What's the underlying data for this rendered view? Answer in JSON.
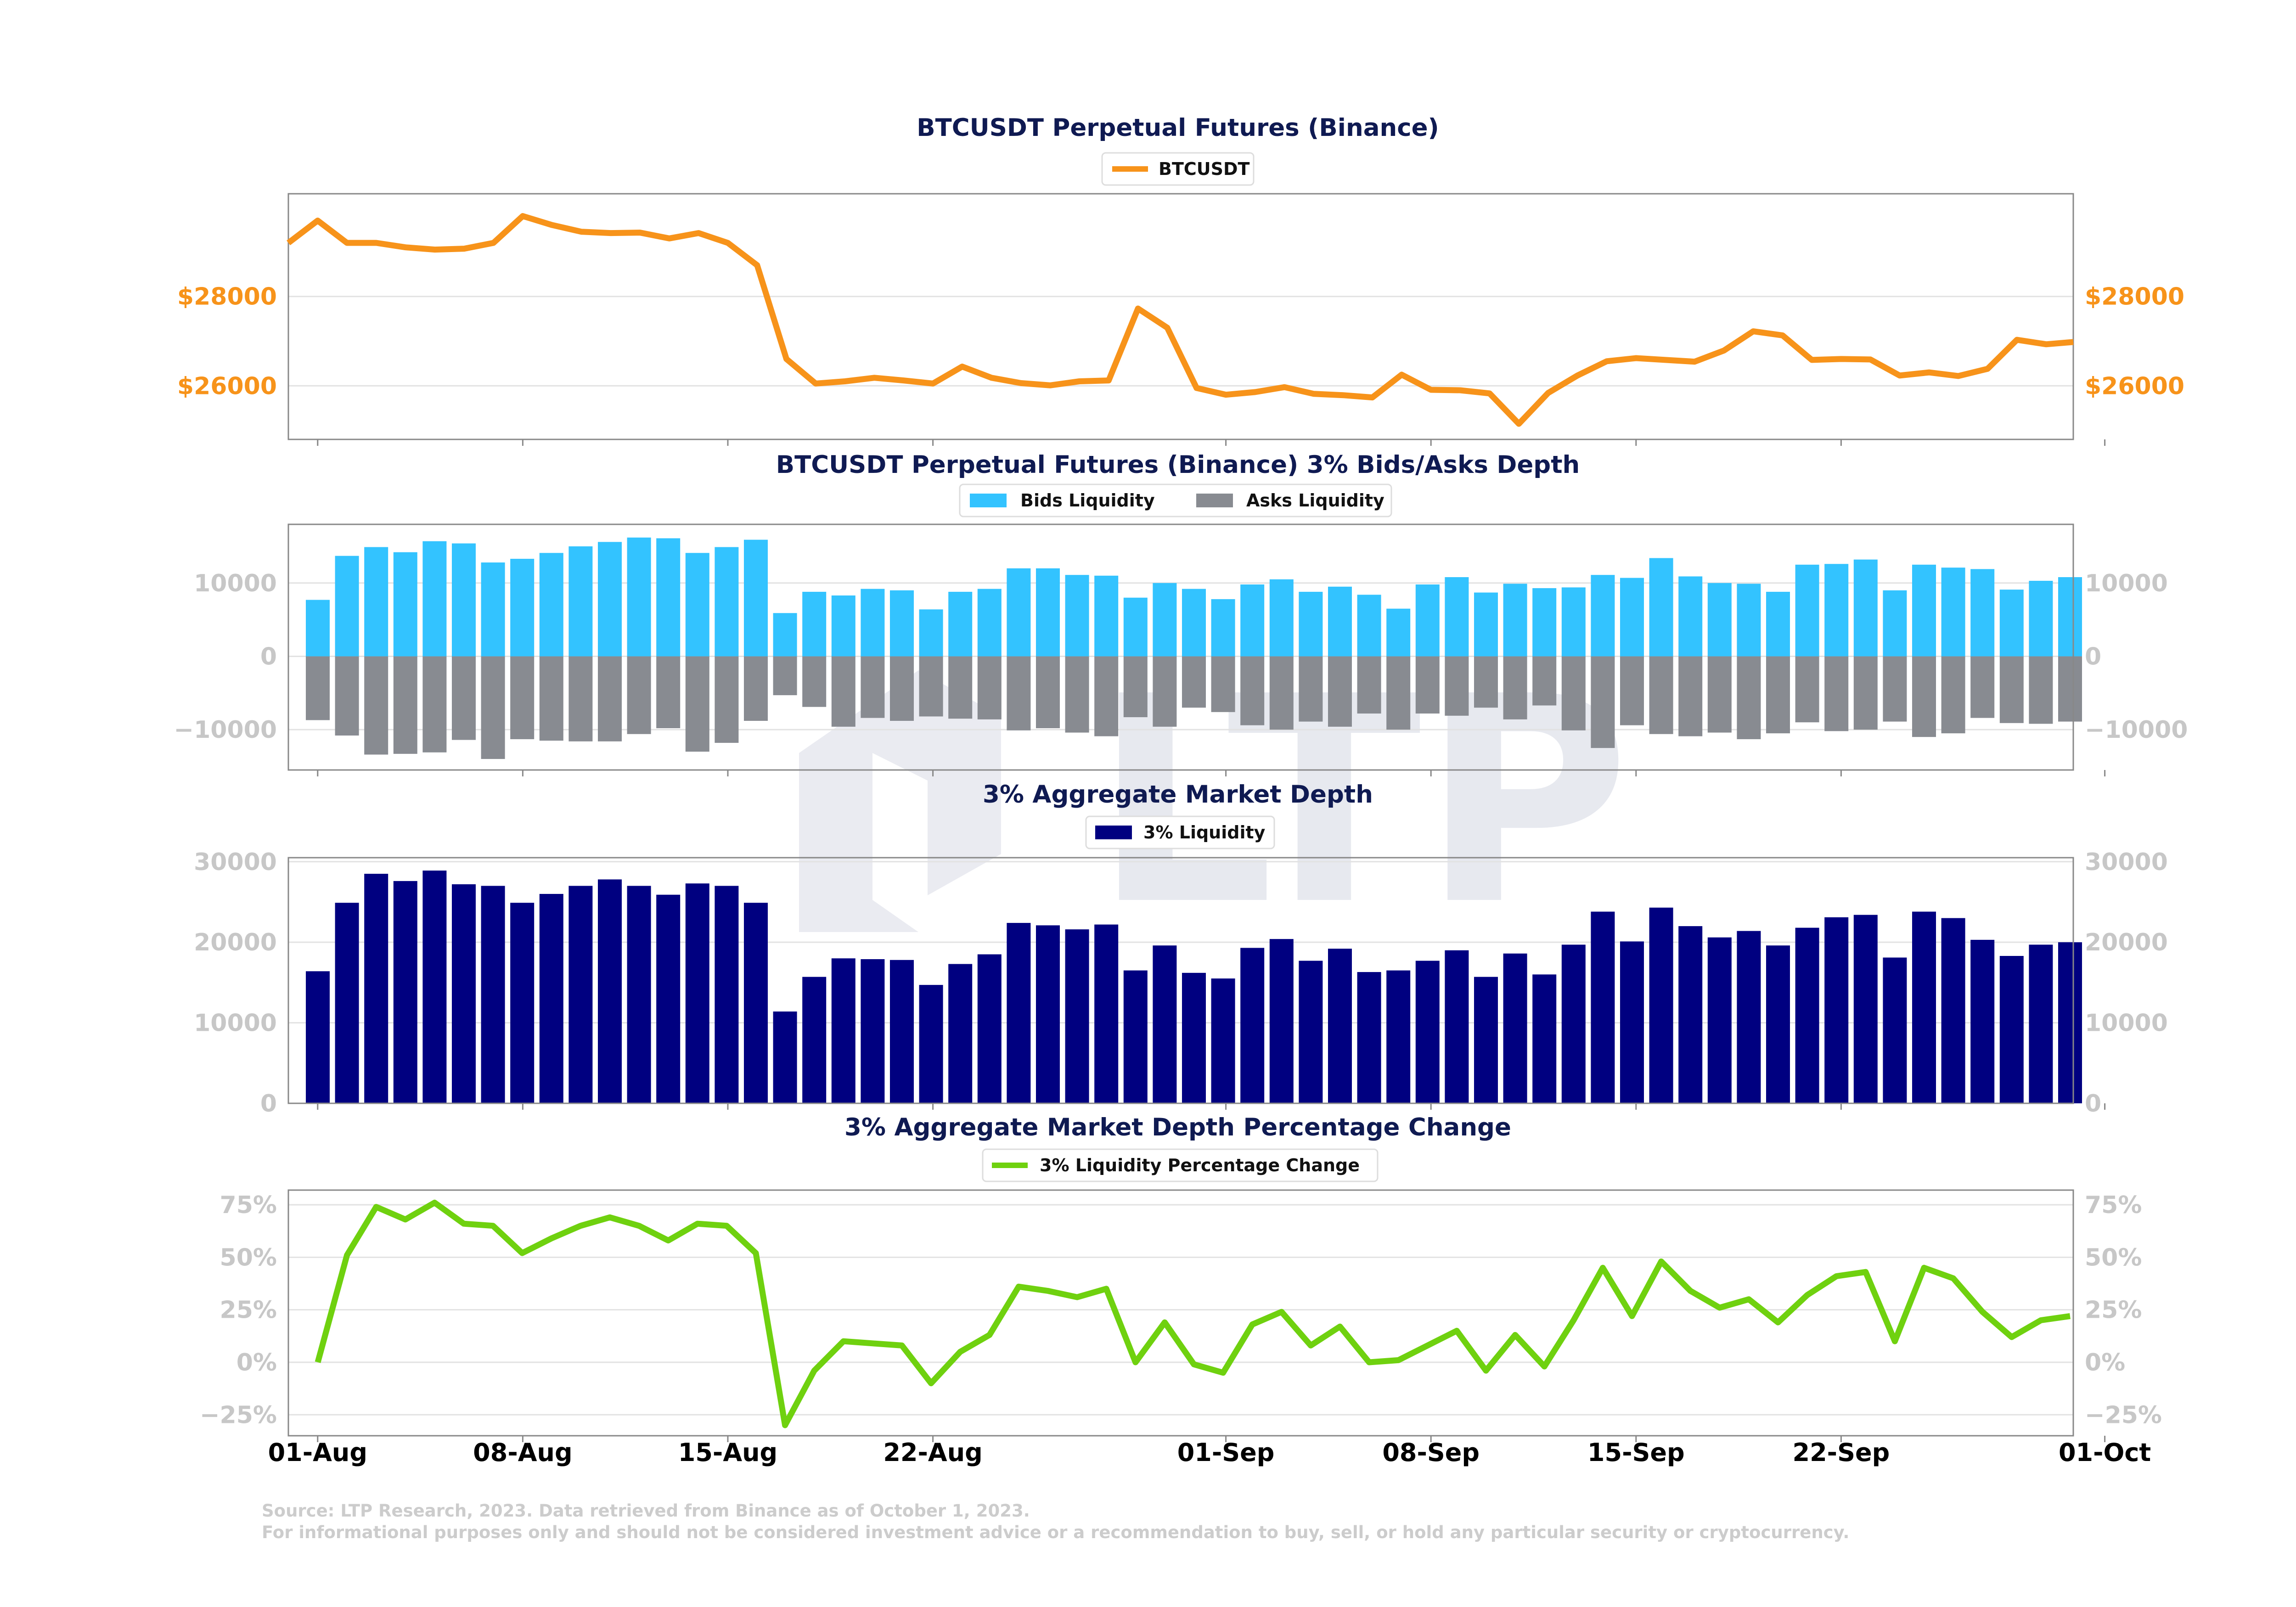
{
  "colors": {
    "price": "#f7931a",
    "bids": "#33c3ff",
    "asks": "#888b91",
    "liquidity": "#000080",
    "pct": "#6fd10f",
    "title": "#0f1a52",
    "tick_gray": "#c7c7c7",
    "tick_price": "#f7931a"
  },
  "watermark": {
    "text": "LTP"
  },
  "source": {
    "line1": "Source: LTP Research, 2023. Data retrieved from Binance as of October 1, 2023.",
    "line2": "For informational purposes only and should not be considered investment advice or a recommendation to buy, sell, or hold any particular security or cryptocurrency."
  },
  "x_axis": {
    "tick_labels": [
      "01-Aug",
      "08-Aug",
      "15-Aug",
      "22-Aug",
      "01-Sep",
      "08-Sep",
      "15-Sep",
      "22-Sep",
      "01-Oct"
    ]
  },
  "chart_data": [
    {
      "type": "line",
      "title": "BTCUSDT Perpetual Futures (Binance)",
      "series": [
        {
          "name": "BTCUSDT",
          "x": [
            "2023-07-31",
            "2023-08-01",
            "2023-08-02",
            "2023-08-03",
            "2023-08-04",
            "2023-08-05",
            "2023-08-06",
            "2023-08-07",
            "2023-08-08",
            "2023-08-09",
            "2023-08-10",
            "2023-08-11",
            "2023-08-12",
            "2023-08-13",
            "2023-08-14",
            "2023-08-15",
            "2023-08-16",
            "2023-08-17",
            "2023-08-18",
            "2023-08-19",
            "2023-08-20",
            "2023-08-21",
            "2023-08-22",
            "2023-08-23",
            "2023-08-24",
            "2023-08-25",
            "2023-08-26",
            "2023-08-27",
            "2023-08-28",
            "2023-08-29",
            "2023-08-30",
            "2023-08-31",
            "2023-09-01",
            "2023-09-02",
            "2023-09-03",
            "2023-09-04",
            "2023-09-05",
            "2023-09-06",
            "2023-09-07",
            "2023-09-08",
            "2023-09-09",
            "2023-09-10",
            "2023-09-11",
            "2023-09-12",
            "2023-09-13",
            "2023-09-14",
            "2023-09-15",
            "2023-09-16",
            "2023-09-17",
            "2023-09-18",
            "2023-09-19",
            "2023-09-20",
            "2023-09-21",
            "2023-09-22",
            "2023-09-23",
            "2023-09-24",
            "2023-09-25",
            "2023-09-26",
            "2023-09-27",
            "2023-09-28",
            "2023-09-29",
            "2023-09-30",
            "2023-10-01"
          ],
          "values": [
            29200,
            29700,
            29200,
            29200,
            29100,
            29050,
            29070,
            29200,
            29800,
            29600,
            29450,
            29420,
            29430,
            29300,
            29420,
            29200,
            28700,
            26600,
            26050,
            26100,
            26180,
            26120,
            26050,
            26430,
            26180,
            26060,
            26010,
            26100,
            26120,
            27730,
            27300,
            25950,
            25800,
            25860,
            25970,
            25820,
            25790,
            25740,
            26250,
            25910,
            25900,
            25830,
            25150,
            25840,
            26230,
            26550,
            26620,
            26580,
            26540,
            26790,
            27220,
            27130,
            26580,
            26600,
            26590,
            26230,
            26300,
            26220,
            26380,
            27030,
            26930,
            26980,
            26980
          ]
        }
      ],
      "ylim": [
        24800,
        30300
      ],
      "yticks": [
        "$26000",
        "$28000"
      ]
    },
    {
      "type": "bar",
      "title": "BTCUSDT Perpetual Futures (Binance) 3% Bids/Asks Depth",
      "series": [
        {
          "name": "Bids Liquidity",
          "values": [
            7700,
            13700,
            14900,
            14200,
            15700,
            15400,
            12800,
            13300,
            14100,
            15000,
            15600,
            16200,
            16100,
            14100,
            14900,
            15900,
            5900,
            8800,
            8300,
            9200,
            9000,
            6400,
            8800,
            9200,
            12000,
            12000,
            11100,
            11000,
            8000,
            10000,
            9200,
            7800,
            9800,
            10500,
            8800,
            9500,
            8400,
            6500,
            9800,
            10800,
            8700,
            9900,
            9300,
            9400,
            11100,
            10700,
            13400,
            10900,
            10000,
            9900,
            8800,
            12500,
            12600,
            13200,
            9000,
            12500,
            12100,
            11900,
            9100,
            10300,
            10800
          ]
        },
        {
          "name": "Asks Liquidity",
          "values": [
            -8700,
            -10800,
            -13400,
            -13300,
            -13100,
            -11400,
            -14000,
            -11300,
            -11500,
            -11600,
            -11600,
            -10600,
            -9800,
            -13000,
            -11800,
            -8800,
            -5300,
            -6900,
            -9600,
            -8400,
            -8800,
            -8200,
            -8500,
            -8600,
            -10100,
            -9800,
            -10400,
            -10900,
            -8300,
            -9600,
            -7000,
            -7600,
            -9400,
            -10000,
            -8900,
            -9600,
            -7800,
            -10000,
            -7800,
            -8100,
            -7000,
            -8600,
            -6700,
            -10100,
            -12500,
            -9400,
            -10600,
            -10900,
            -10400,
            -11300,
            -10500,
            -9000,
            -10200,
            -10000,
            -8900,
            -11000,
            -10500,
            -8400,
            -9100,
            -9200,
            -8900
          ]
        }
      ],
      "ylim": [
        -15500,
        18000
      ],
      "yticks": [
        "−10000",
        "0",
        "10000"
      ]
    },
    {
      "type": "bar",
      "title": "3% Aggregate Market Depth",
      "series": [
        {
          "name": "3% Liquidity",
          "values": [
            16400,
            24900,
            28500,
            27600,
            28900,
            27200,
            27000,
            24900,
            26000,
            27000,
            27800,
            27000,
            25900,
            27300,
            27000,
            24900,
            11400,
            15700,
            18000,
            17900,
            17800,
            14700,
            17300,
            18500,
            22400,
            22100,
            21600,
            22200,
            16500,
            19600,
            16200,
            15500,
            19300,
            20400,
            17700,
            19200,
            16300,
            16500,
            17700,
            19000,
            15700,
            18600,
            16000,
            19700,
            23800,
            20100,
            24300,
            22000,
            20600,
            21400,
            19600,
            21800,
            23100,
            23400,
            18100,
            23800,
            23000,
            20300,
            18300,
            19700,
            20000
          ]
        }
      ],
      "ylim": [
        0,
        30500
      ],
      "yticks": [
        "0",
        "10000",
        "20000",
        "30000"
      ]
    },
    {
      "type": "line",
      "title": "3% Aggregate Market Depth Percentage Change",
      "series": [
        {
          "name": "3% Liquidity Percentage Change",
          "values": [
            0,
            51,
            74,
            68,
            76,
            66,
            65,
            52,
            59,
            65,
            69,
            65,
            58,
            66,
            65,
            52,
            -30,
            -4,
            10,
            9,
            8,
            -10,
            5,
            13,
            36,
            34,
            31,
            35,
            0,
            19,
            -1,
            -5,
            18,
            24,
            8,
            17,
            0,
            1,
            8,
            15,
            -4,
            13,
            -2,
            20,
            45,
            22,
            48,
            34,
            26,
            30,
            19,
            32,
            41,
            43,
            10,
            45,
            40,
            24,
            12,
            20,
            22
          ]
        }
      ],
      "ylim": [
        -35,
        82
      ],
      "yticks": [
        "−25%",
        "0%",
        "25%",
        "50%",
        "75%"
      ]
    }
  ]
}
